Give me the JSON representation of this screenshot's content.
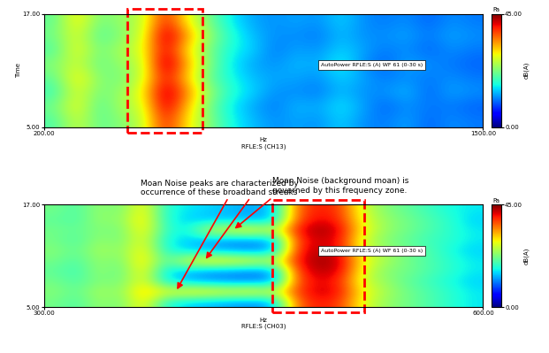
{
  "chart_data": [
    {
      "type": "heatmap",
      "ylabel": "Time",
      "xlabel": "Hz",
      "channel_label": "RFLE:S (CH13)",
      "annotation": "AutoPower RFLE:S (A) WF 61 (0-30 s)",
      "xlim": [
        200,
        1500
      ],
      "xticks": [
        {
          "value": 200,
          "label": "200.00"
        },
        {
          "value": 1500,
          "label": "1500.00"
        }
      ],
      "ylim": [
        5,
        17
      ],
      "yticks": [
        {
          "value": 5,
          "label": "5.00"
        },
        {
          "value": 17,
          "label": "17.00"
        }
      ],
      "cells": [
        [
          20,
          27,
          21,
          23,
          26,
          40,
          30,
          23,
          17,
          14,
          12,
          13,
          12,
          15,
          12,
          11,
          13,
          10,
          12,
          11
        ],
        [
          22,
          29,
          20,
          25,
          27,
          43,
          32,
          22,
          16,
          13,
          11,
          14,
          13,
          16,
          13,
          10,
          12,
          11,
          11,
          10
        ],
        [
          19,
          28,
          22,
          24,
          29,
          44,
          35,
          24,
          18,
          15,
          12,
          12,
          11,
          14,
          12,
          12,
          14,
          10,
          13,
          12
        ],
        [
          21,
          30,
          23,
          22,
          27,
          41,
          31,
          21,
          17,
          14,
          13,
          13,
          12,
          15,
          13,
          11,
          12,
          11,
          12,
          11
        ],
        [
          23,
          27,
          21,
          24,
          26,
          45,
          33,
          23,
          16,
          13,
          12,
          14,
          13,
          17,
          12,
          10,
          13,
          12,
          11,
          10
        ],
        [
          20,
          29,
          22,
          25,
          28,
          42,
          30,
          22,
          17,
          15,
          11,
          13,
          12,
          15,
          13,
          11,
          12,
          10,
          12,
          11
        ],
        [
          22,
          28,
          20,
          23,
          27,
          44,
          34,
          24,
          18,
          14,
          12,
          12,
          11,
          14,
          12,
          12,
          13,
          11,
          13,
          12
        ],
        [
          21,
          30,
          22,
          24,
          26,
          40,
          29,
          22,
          16,
          13,
          12,
          13,
          12,
          15,
          12,
          11,
          12,
          10,
          12,
          11
        ]
      ],
      "colorbar": {
        "range": [
          0,
          45
        ],
        "ticks": [
          {
            "value": 0,
            "label": "0.00"
          },
          {
            "value": 45,
            "label": "45.00"
          }
        ],
        "label": "dB(A)",
        "unit": "Pa"
      }
    },
    {
      "type": "heatmap",
      "xlabel": "Hz",
      "channel_label": "RFLE:S (CH03)",
      "annotation": "AutoPower RFLE:S (A) WF 61 (0-30 s)",
      "notes": [
        "Moan Noise peaks are characterized by occurrence of these broadband streaks",
        "Moan Noise (background moan) is governed by this frequency zone."
      ],
      "xlim": [
        300,
        600
      ],
      "xticks": [
        {
          "value": 300,
          "label": "300.00"
        },
        {
          "value": 600,
          "label": "600.00"
        }
      ],
      "ylim": [
        5,
        17
      ],
      "yticks": [
        {
          "value": 5,
          "label": "5.00"
        },
        {
          "value": 17,
          "label": "17.00"
        }
      ],
      "cells": [
        [
          22,
          20,
          24,
          22,
          30,
          18,
          15,
          14,
          13,
          12,
          14,
          36,
          40,
          38,
          28,
          24,
          22,
          20,
          18,
          16
        ],
        [
          23,
          21,
          25,
          23,
          32,
          28,
          30,
          30,
          29,
          30,
          27,
          38,
          42,
          40,
          29,
          25,
          22,
          20,
          18,
          16
        ],
        [
          22,
          20,
          23,
          22,
          29,
          17,
          14,
          13,
          12,
          12,
          13,
          37,
          41,
          39,
          27,
          24,
          21,
          19,
          17,
          15
        ],
        [
          21,
          19,
          24,
          21,
          30,
          16,
          14,
          12,
          12,
          11,
          13,
          38,
          43,
          41,
          28,
          23,
          22,
          20,
          18,
          16
        ],
        [
          22,
          20,
          24,
          22,
          31,
          20,
          28,
          31,
          30,
          29,
          26,
          40,
          44,
          42,
          29,
          25,
          22,
          20,
          18,
          16
        ],
        [
          23,
          21,
          25,
          23,
          30,
          18,
          15,
          14,
          13,
          12,
          14,
          39,
          43,
          40,
          28,
          24,
          22,
          20,
          17,
          15
        ],
        [
          22,
          20,
          24,
          22,
          29,
          17,
          15,
          13,
          12,
          12,
          14,
          38,
          42,
          40,
          27,
          23,
          21,
          19,
          18,
          16
        ],
        [
          22,
          21,
          23,
          22,
          30,
          19,
          16,
          27,
          29,
          30,
          26,
          40,
          44,
          41,
          29,
          24,
          22,
          20,
          18,
          16
        ],
        [
          21,
          20,
          24,
          23,
          31,
          18,
          15,
          14,
          14,
          13,
          15,
          37,
          41,
          39,
          28,
          24,
          22,
          20,
          18,
          15
        ],
        [
          22,
          20,
          24,
          22,
          30,
          18,
          16,
          15,
          14,
          13,
          15,
          36,
          40,
          38,
          27,
          23,
          21,
          19,
          17,
          16
        ]
      ],
      "colorbar": {
        "range": [
          0,
          45
        ],
        "ticks": [
          {
            "value": 0,
            "label": "0.00"
          },
          {
            "value": 45,
            "label": "45.00"
          }
        ],
        "label": "dB(A)",
        "unit": "Pa"
      }
    }
  ]
}
